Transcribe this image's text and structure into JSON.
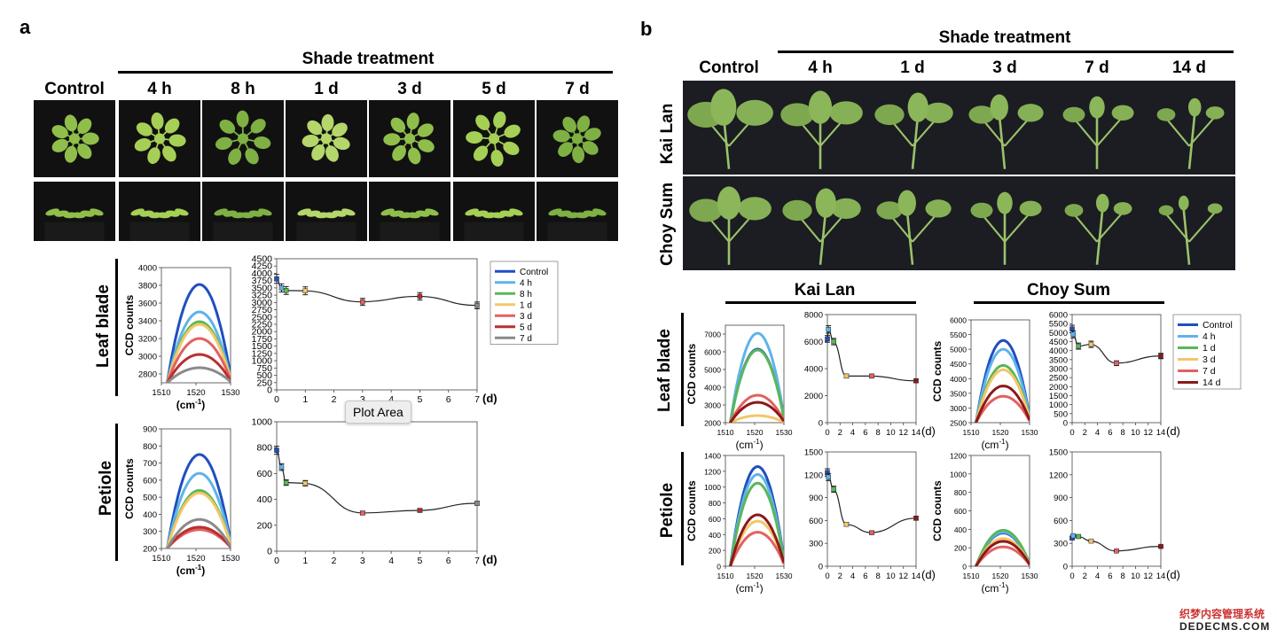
{
  "panel_a": {
    "letter": "a",
    "shade_label": "Shade treatment",
    "columns": [
      "Control",
      "4 h",
      "8 h",
      "1 d",
      "3 d",
      "5 d",
      "7 d"
    ],
    "row_labels": [
      "Leaf blade",
      "Petiole"
    ]
  },
  "panel_b": {
    "letter": "b",
    "shade_label": "Shade treatment",
    "columns": [
      "Control",
      "4 h",
      "1 d",
      "3 d",
      "7 d",
      "14 d"
    ],
    "photo_rows": [
      "Kai Lan",
      "Choy Sum"
    ],
    "species": [
      "Kai Lan",
      "Choy Sum"
    ],
    "row_labels": [
      "Leaf blade",
      "Petiole"
    ]
  },
  "axis_text": {
    "ccd": "CCD counts",
    "wavenumber": "(cm",
    "wavenumber_sup": "-1",
    "days": "(d)"
  },
  "tooltip": "Plot Area",
  "watermark": {
    "line1": "织梦内容管理系统",
    "line2": "DEDECMS.COM"
  },
  "colors": {
    "Control": "#1f4fbf",
    "4 h": "#5fb3ea",
    "8 h": "#5ab75a",
    "1 d": "#f2c76a",
    "3 d": "#e46060",
    "5 d": "#b83030",
    "7 d": "#8a8a8a",
    "b_1d": "#5ab75a",
    "b_3d": "#f2c76a",
    "b_7d": "#e46060",
    "b_14d": "#8b1a1a"
  },
  "legend_a": [
    "Control",
    "4 h",
    "8 h",
    "1 d",
    "3 d",
    "5 d",
    "7 d"
  ],
  "legend_b": [
    "Control",
    "4 h",
    "1 d",
    "3 d",
    "7 d",
    "14 d"
  ],
  "chart_data": [
    {
      "id": "a_leaf_spectrum",
      "type": "line",
      "xlabel": "(cm-1)",
      "ylabel": "CCD counts",
      "xlim": [
        1510,
        1530
      ],
      "ylim": [
        2700,
        4000
      ],
      "xticks": [
        1510,
        1520,
        1530
      ],
      "yticks": [
        2800,
        3000,
        3200,
        3400,
        3600,
        3800,
        4000
      ],
      "series": [
        {
          "name": "Control",
          "peak": 3810
        },
        {
          "name": "4 h",
          "peak": 3500
        },
        {
          "name": "8 h",
          "peak": 3390
        },
        {
          "name": "1 d",
          "peak": 3360
        },
        {
          "name": "3 d",
          "peak": 3200
        },
        {
          "name": "5 d",
          "peak": 3020
        },
        {
          "name": "7 d",
          "peak": 2870
        }
      ]
    },
    {
      "id": "a_leaf_time",
      "type": "line",
      "xlabel": "(d)",
      "xlim": [
        0,
        7
      ],
      "ylim": [
        0,
        4500
      ],
      "xticks": [
        0,
        1,
        2,
        3,
        4,
        5,
        6,
        7
      ],
      "yticks": [
        0,
        250,
        500,
        750,
        1000,
        1250,
        1500,
        1750,
        2000,
        2250,
        2500,
        2750,
        3000,
        3250,
        3500,
        3750,
        4000,
        4250,
        4500
      ],
      "x": [
        0,
        0.17,
        0.33,
        1,
        3,
        5,
        7
      ],
      "y": [
        3810,
        3500,
        3410,
        3400,
        3020,
        3210,
        2900
      ]
    },
    {
      "id": "a_pet_spectrum",
      "type": "line",
      "xlabel": "(cm-1)",
      "ylabel": "CCD counts",
      "xlim": [
        1510,
        1530
      ],
      "ylim": [
        200,
        900
      ],
      "xticks": [
        1510,
        1520,
        1530
      ],
      "yticks": [
        200,
        300,
        400,
        500,
        600,
        700,
        800,
        900
      ],
      "series": [
        {
          "name": "Control",
          "peak": 750
        },
        {
          "name": "4 h",
          "peak": 640
        },
        {
          "name": "8 h",
          "peak": 540
        },
        {
          "name": "1 d",
          "peak": 525
        },
        {
          "name": "3 d",
          "peak": 310
        },
        {
          "name": "5 d",
          "peak": 325
        },
        {
          "name": "7 d",
          "peak": 370
        }
      ]
    },
    {
      "id": "a_pet_time",
      "type": "line",
      "xlabel": "(d)",
      "xlim": [
        0,
        7
      ],
      "ylim": [
        0,
        1000
      ],
      "xticks": [
        0,
        1,
        2,
        3,
        4,
        5,
        6,
        7
      ],
      "yticks": [
        0,
        200,
        400,
        600,
        800,
        1000
      ],
      "x": [
        0,
        0.17,
        0.33,
        1,
        3,
        5,
        7
      ],
      "y": [
        780,
        650,
        530,
        525,
        295,
        315,
        370
      ]
    },
    {
      "id": "b_kl_leaf_spectrum",
      "type": "line",
      "xlabel": "(cm-1)",
      "ylabel": "CCD counts",
      "xlim": [
        1510,
        1530
      ],
      "ylim": [
        2000,
        7500
      ],
      "xticks": [
        1510,
        1520,
        1530
      ],
      "yticks": [
        2000,
        3000,
        4000,
        5000,
        6000,
        7000
      ],
      "series": [
        {
          "name": "Control",
          "peak": 6150
        },
        {
          "name": "4 h",
          "peak": 7050
        },
        {
          "name": "1 d",
          "peak": 6100
        },
        {
          "name": "3 d",
          "peak": 2400
        },
        {
          "name": "7 d",
          "peak": 3550
        },
        {
          "name": "14 d",
          "peak": 3150
        }
      ]
    },
    {
      "id": "b_kl_leaf_time",
      "type": "line",
      "xlabel": "(d)",
      "xlim": [
        0,
        14
      ],
      "ylim": [
        0,
        8000
      ],
      "xticks": [
        0,
        2,
        4,
        6,
        8,
        10,
        12,
        14
      ],
      "yticks": [
        0,
        2000,
        4000,
        6000,
        8000
      ],
      "x": [
        0,
        0.17,
        1,
        3,
        7,
        14
      ],
      "y": [
        6200,
        6900,
        6000,
        3450,
        3450,
        3100
      ]
    },
    {
      "id": "b_cs_leaf_spectrum",
      "type": "line",
      "xlabel": "(cm-1)",
      "ylabel": "CCD counts",
      "xlim": [
        1510,
        1530
      ],
      "ylim": [
        2500,
        6000
      ],
      "xticks": [
        1510,
        1520,
        1530
      ],
      "yticks": [
        2500,
        3000,
        3500,
        4000,
        4500,
        5000,
        5500,
        6000
      ],
      "series": [
        {
          "name": "Control",
          "peak": 5300
        },
        {
          "name": "4 h",
          "peak": 5000
        },
        {
          "name": "1 d",
          "peak": 4450
        },
        {
          "name": "3 d",
          "peak": 4300
        },
        {
          "name": "7 d",
          "peak": 3400
        },
        {
          "name": "14 d",
          "peak": 3750
        }
      ]
    },
    {
      "id": "b_cs_leaf_time",
      "type": "line",
      "xlabel": "(d)",
      "xlim": [
        0,
        14
      ],
      "ylim": [
        0,
        6000
      ],
      "xticks": [
        0,
        2,
        4,
        6,
        8,
        10,
        12,
        14
      ],
      "yticks": [
        0,
        500,
        1000,
        1500,
        2000,
        2500,
        3000,
        3500,
        4000,
        4500,
        5000,
        5500,
        6000
      ],
      "x": [
        0,
        0.17,
        1,
        3,
        7,
        14
      ],
      "y": [
        5200,
        4900,
        4250,
        4350,
        3300,
        3700
      ]
    },
    {
      "id": "b_kl_pet_spectrum",
      "type": "line",
      "xlabel": "(cm-1)",
      "ylabel": "CCD counts",
      "xlim": [
        1510,
        1530
      ],
      "ylim": [
        0,
        1400
      ],
      "xticks": [
        1510,
        1520,
        1530
      ],
      "yticks": [
        0,
        200,
        400,
        600,
        800,
        1000,
        1200,
        1400
      ],
      "series": [
        {
          "name": "Control",
          "peak": 1260
        },
        {
          "name": "4 h",
          "peak": 1160
        },
        {
          "name": "1 d",
          "peak": 1050
        },
        {
          "name": "3 d",
          "peak": 570
        },
        {
          "name": "7 d",
          "peak": 430
        },
        {
          "name": "14 d",
          "peak": 650
        }
      ]
    },
    {
      "id": "b_kl_pet_time",
      "type": "line",
      "xlabel": "(d)",
      "xlim": [
        0,
        14
      ],
      "ylim": [
        0,
        1500
      ],
      "xticks": [
        0,
        2,
        4,
        6,
        8,
        10,
        12,
        14
      ],
      "yticks": [
        0,
        300,
        600,
        900,
        1200,
        1500
      ],
      "x": [
        0,
        0.17,
        1,
        3,
        7,
        14
      ],
      "y": [
        1230,
        1170,
        1010,
        550,
        440,
        630
      ]
    },
    {
      "id": "b_cs_pet_spectrum",
      "type": "line",
      "xlabel": "(cm-1)",
      "ylabel": "CCD counts",
      "xlim": [
        1510,
        1530
      ],
      "ylim": [
        0,
        1200
      ],
      "xticks": [
        1510,
        1520,
        1530
      ],
      "yticks": [
        0,
        200,
        400,
        600,
        800,
        1000,
        1200
      ],
      "series": [
        {
          "name": "Control",
          "peak": 360
        },
        {
          "name": "4 h",
          "peak": 370
        },
        {
          "name": "1 d",
          "peak": 390
        },
        {
          "name": "3 d",
          "peak": 300
        },
        {
          "name": "7 d",
          "peak": 210
        },
        {
          "name": "14 d",
          "peak": 270
        }
      ]
    },
    {
      "id": "b_cs_pet_time",
      "type": "line",
      "xlabel": "(d)",
      "xlim": [
        0,
        14
      ],
      "ylim": [
        0,
        1500
      ],
      "xticks": [
        0,
        2,
        4,
        6,
        8,
        10,
        12,
        14
      ],
      "yticks": [
        0,
        300,
        600,
        900,
        1200,
        1500
      ],
      "x": [
        0,
        0.17,
        1,
        3,
        7,
        14
      ],
      "y": [
        370,
        400,
        390,
        330,
        200,
        260
      ]
    }
  ]
}
